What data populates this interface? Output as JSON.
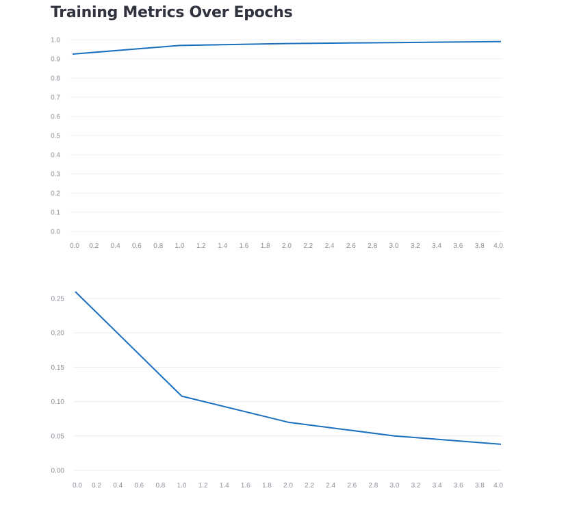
{
  "title": "Training Metrics Over Epochs",
  "chart_data": [
    {
      "type": "line",
      "x": [
        0,
        1,
        2,
        3,
        4
      ],
      "series": [
        {
          "values": [
            0.925,
            0.97,
            0.98,
            0.985,
            0.99
          ],
          "color": "#1a6fbf"
        }
      ],
      "xlim": [
        0,
        4
      ],
      "ylim": [
        0,
        1
      ],
      "xticks": [
        "0.0",
        "0.2",
        "0.4",
        "0.6",
        "0.8",
        "1.0",
        "1.2",
        "1.4",
        "1.6",
        "1.8",
        "2.0",
        "2.2",
        "2.4",
        "2.6",
        "2.8",
        "3.0",
        "3.2",
        "3.4",
        "3.6",
        "3.8",
        "4.0"
      ],
      "yticks": [
        "0.0",
        "0.1",
        "0.2",
        "0.3",
        "0.4",
        "0.5",
        "0.6",
        "0.7",
        "0.8",
        "0.9",
        "1.0"
      ],
      "grid": true
    },
    {
      "type": "line",
      "x": [
        0,
        1,
        2,
        3,
        4
      ],
      "series": [
        {
          "values": [
            0.26,
            0.108,
            0.07,
            0.05,
            0.038
          ],
          "color": "#1a6fbf"
        }
      ],
      "xlim": [
        0,
        4
      ],
      "ylim": [
        0,
        0.26
      ],
      "xticks": [
        "0.0",
        "0.2",
        "0.4",
        "0.6",
        "0.8",
        "1.0",
        "1.2",
        "1.4",
        "1.6",
        "1.8",
        "2.0",
        "2.2",
        "2.4",
        "2.6",
        "2.8",
        "3.0",
        "3.2",
        "3.4",
        "3.6",
        "3.8",
        "4.0"
      ],
      "yticks": [
        "0.00",
        "0.05",
        "0.10",
        "0.15",
        "0.20",
        "0.25"
      ],
      "grid": true
    }
  ]
}
